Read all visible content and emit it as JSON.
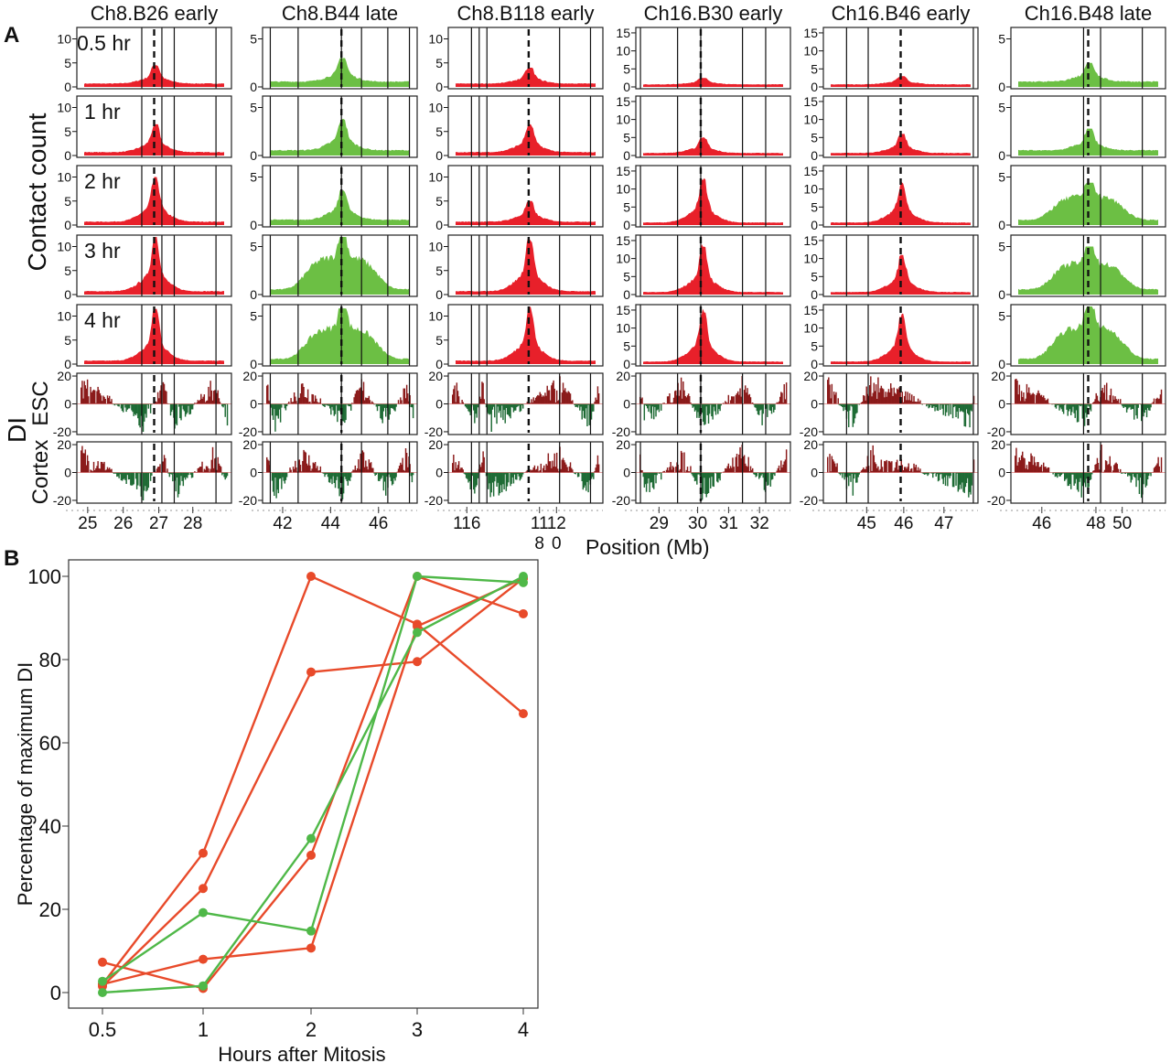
{
  "panel_labels": {
    "a": "A",
    "b": "B"
  },
  "colors": {
    "early": "#e8202a",
    "late": "#6cbf44",
    "di_pos": "#8b1a1a",
    "di_neg": "#1e6b35",
    "line_red": "#e84a2a",
    "line_green": "#4fb848"
  },
  "chart_data": [
    {
      "type": "area",
      "panel": "A",
      "ylabel_contact": "Contact count",
      "ylabel_di": "DI",
      "di_rows": [
        "ESC",
        "Cortex"
      ],
      "xlabel": "Position (Mb)",
      "time_labels": [
        "0.5 hr",
        "1 hr",
        "2 hr",
        "3 hr",
        "4 hr"
      ],
      "di_ylim": [
        -20,
        20
      ],
      "di_ticks": [
        "20",
        "0",
        "-20"
      ],
      "columns": [
        {
          "title": "Ch8.B26 early",
          "timing": "early",
          "ylim": [
            0,
            12
          ],
          "yticks": [
            "0",
            "5",
            "10"
          ],
          "approx_peak": [
            4.5,
            6.5,
            10,
            12,
            11.5
          ],
          "xticks": [
            "25",
            "26",
            "27",
            "28"
          ]
        },
        {
          "title": "Ch8.B44 late",
          "timing": "late",
          "ylim": [
            0,
            6
          ],
          "yticks": [
            "0",
            "5"
          ],
          "approx_peak": [
            3,
            3.8,
            3.6,
            6,
            5.8
          ],
          "xticks": [
            "42",
            "44",
            "46"
          ]
        },
        {
          "title": "Ch8.B118 early",
          "timing": "early",
          "ylim": [
            0,
            12
          ],
          "yticks": [
            "0",
            "5",
            "10"
          ],
          "approx_peak": [
            4,
            6.5,
            5,
            12,
            12
          ],
          "xticks": [
            "116",
            "118",
            "120"
          ]
        },
        {
          "title": "Ch16.B30 early",
          "timing": "early",
          "ylim": [
            0,
            16
          ],
          "yticks": [
            "0",
            "5",
            "10",
            "15"
          ],
          "approx_peak": [
            2.5,
            5,
            13,
            14,
            15.5
          ],
          "xticks": [
            "29",
            "30",
            "31",
            "32"
          ]
        },
        {
          "title": "Ch16.B46 early",
          "timing": "early",
          "ylim": [
            0,
            16
          ],
          "yticks": [
            "0",
            "5",
            "10",
            "15"
          ],
          "approx_peak": [
            3,
            6,
            12,
            11,
            14
          ],
          "xticks": [
            "45",
            "46",
            "47"
          ]
        },
        {
          "title": "Ch16.B48 late",
          "timing": "late",
          "ylim": [
            0,
            6
          ],
          "yticks": [
            "0",
            "5"
          ],
          "approx_peak": [
            2.5,
            2.8,
            4.4,
            5,
            6
          ],
          "xticks": [
            "46",
            "48",
            "50"
          ]
        }
      ]
    },
    {
      "type": "line",
      "panel": "B",
      "xlabel": "Hours after Mitosis",
      "ylabel": "Percentage of maximum DI",
      "categories": [
        "0.5",
        "1",
        "2",
        "3",
        "4"
      ],
      "ylim": [
        -3,
        104
      ],
      "yticks": [
        "0",
        "20",
        "40",
        "60",
        "80",
        "100"
      ],
      "grid": false,
      "series": [
        {
          "color": "red",
          "values": [
            2,
            33.5,
            100,
            88.5,
            67
          ]
        },
        {
          "color": "red",
          "values": [
            1.5,
            25,
            77,
            79.5,
            99.5
          ]
        },
        {
          "color": "red",
          "values": [
            7.3,
            1,
            33,
            100,
            91
          ]
        },
        {
          "color": "red",
          "values": [
            2,
            8,
            10.7,
            88,
            99.5
          ]
        },
        {
          "color": "green",
          "values": [
            0,
            1.6,
            37,
            86.5,
            100
          ]
        },
        {
          "color": "green",
          "values": [
            2.7,
            19.2,
            14.8,
            100,
            98.5
          ]
        }
      ]
    }
  ]
}
